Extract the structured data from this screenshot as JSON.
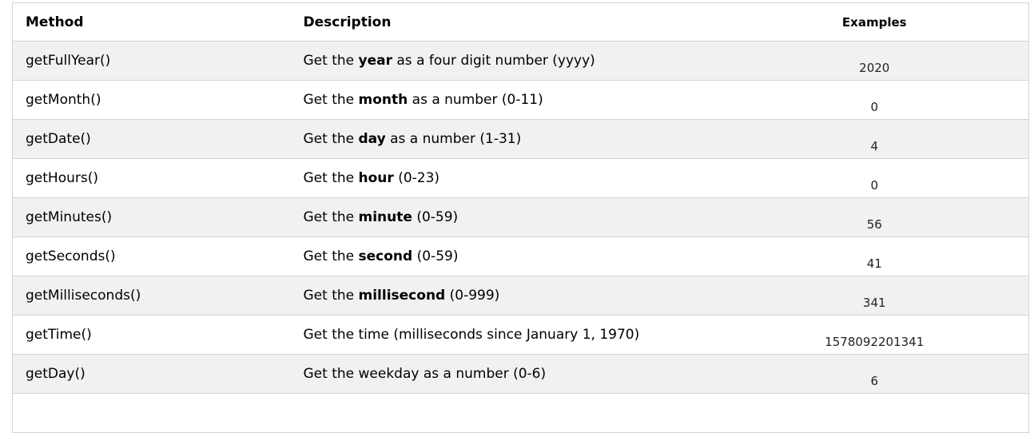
{
  "table": {
    "headers": {
      "method": "Method",
      "description": "Description",
      "examples": "Examples"
    },
    "rows": [
      {
        "method": "getFullYear()",
        "desc_before": "Get the ",
        "desc_bold": "year",
        "desc_after": " as a four digit number (yyyy)",
        "example": "2020"
      },
      {
        "method": "getMonth()",
        "desc_before": "Get the ",
        "desc_bold": "month",
        "desc_after": " as a number (0-11)",
        "example": "0"
      },
      {
        "method": "getDate()",
        "desc_before": "Get the ",
        "desc_bold": "day",
        "desc_after": " as a number (1-31)",
        "example": "4"
      },
      {
        "method": "getHours()",
        "desc_before": "Get the ",
        "desc_bold": "hour",
        "desc_after": " (0-23)",
        "example": "0"
      },
      {
        "method": "getMinutes()",
        "desc_before": "Get the ",
        "desc_bold": "minute",
        "desc_after": " (0-59)",
        "example": "56"
      },
      {
        "method": "getSeconds()",
        "desc_before": "Get the ",
        "desc_bold": "second",
        "desc_after": " (0-59)",
        "example": "41"
      },
      {
        "method": "getMilliseconds()",
        "desc_before": "Get the ",
        "desc_bold": "millisecond",
        "desc_after": " (0-999)",
        "example": "341"
      },
      {
        "method": "getTime()",
        "desc_before": "Get the time (milliseconds since January 1, 1970)",
        "desc_bold": "",
        "desc_after": "",
        "example": "1578092201341"
      },
      {
        "method": "getDay()",
        "desc_before": "Get the weekday as a number (0-6)",
        "desc_bold": "",
        "desc_after": "",
        "example": "6"
      }
    ],
    "colors": {
      "row_alt_bg": "#f1f1f1",
      "border": "#d4d4d4",
      "text": "#000000",
      "example_text": "#222222"
    }
  }
}
